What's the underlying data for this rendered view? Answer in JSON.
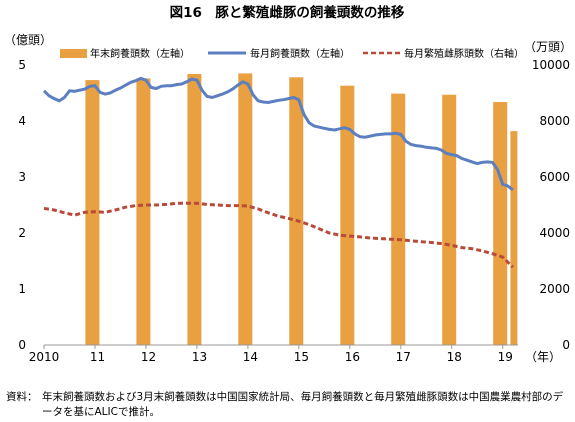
{
  "title": "図16　豚と繁殖雌豚の飼養頭数の推移",
  "note": {
    "label": "資料：",
    "text": "年末飼養頭数および3月末飼養頭数は中国国家統計局、毎月飼養頭数と毎月繁殖雌豚頭数は中国農業農村部のデータを基にALICで推計。"
  },
  "colors": {
    "bar": "#E8A040",
    "monthly": "#5B7FC0",
    "sows": "#B84A3A"
  },
  "chart_data": {
    "type": "bar",
    "left_axis": {
      "title": "（億頭）",
      "min": 0,
      "max": 5,
      "ticks": [
        "0",
        "1",
        "2",
        "3",
        "4",
        "5"
      ]
    },
    "right_axis": {
      "title": "（万頭）",
      "min": 0,
      "max": 10000,
      "ticks": [
        "0",
        "2000",
        "4000",
        "6000",
        "8000",
        "10000"
      ]
    },
    "x_axis": {
      "unit": "（年）",
      "ticks": [
        "2010",
        "11",
        "12",
        "13",
        "14",
        "15",
        "16",
        "17",
        "18",
        "19"
      ],
      "range": [
        2010.0,
        2019.3
      ]
    },
    "legend": {
      "bar": "年末飼養頭数（左軸）",
      "monthly": "毎月飼養頭数（左軸）",
      "sows": "毎月繁殖雌豚頭数（右軸）"
    },
    "bars": {
      "name": "年末飼養頭数（左軸）",
      "x": [
        2010.95,
        2011.95,
        2012.95,
        2013.95,
        2014.95,
        2015.95,
        2016.95,
        2017.95,
        2018.95,
        2019.22
      ],
      "values": [
        4.73,
        4.76,
        4.84,
        4.85,
        4.78,
        4.63,
        4.49,
        4.47,
        4.34,
        3.82
      ]
    },
    "monthly": {
      "name": "毎月飼養頭数（左軸）",
      "x": [
        2010.0,
        2010.1,
        2010.2,
        2010.3,
        2010.4,
        2010.5,
        2010.6,
        2010.7,
        2010.8,
        2010.9,
        2011.0,
        2011.1,
        2011.2,
        2011.3,
        2011.4,
        2011.5,
        2011.6,
        2011.7,
        2011.8,
        2011.9,
        2012.0,
        2012.1,
        2012.2,
        2012.3,
        2012.4,
        2012.5,
        2012.6,
        2012.7,
        2012.8,
        2012.9,
        2013.0,
        2013.1,
        2013.2,
        2013.3,
        2013.4,
        2013.5,
        2013.6,
        2013.7,
        2013.8,
        2013.9,
        2014.0,
        2014.1,
        2014.2,
        2014.3,
        2014.4,
        2014.5,
        2014.6,
        2014.7,
        2014.8,
        2014.9,
        2015.0,
        2015.1,
        2015.2,
        2015.3,
        2015.4,
        2015.5,
        2015.6,
        2015.7,
        2015.8,
        2015.9,
        2016.0,
        2016.1,
        2016.2,
        2016.3,
        2016.4,
        2016.5,
        2016.6,
        2016.7,
        2016.8,
        2016.9,
        2017.0,
        2017.1,
        2017.2,
        2017.3,
        2017.4,
        2017.5,
        2017.6,
        2017.7,
        2017.8,
        2017.9,
        2018.0,
        2018.1,
        2018.2,
        2018.3,
        2018.4,
        2018.5,
        2018.6,
        2018.7,
        2018.8,
        2018.9,
        2019.0,
        2019.1,
        2019.2
      ],
      "values": [
        4.54,
        4.45,
        4.4,
        4.36,
        4.42,
        4.54,
        4.53,
        4.55,
        4.57,
        4.62,
        4.63,
        4.51,
        4.48,
        4.5,
        4.55,
        4.59,
        4.64,
        4.69,
        4.72,
        4.76,
        4.73,
        4.6,
        4.58,
        4.62,
        4.63,
        4.63,
        4.65,
        4.66,
        4.7,
        4.75,
        4.73,
        4.55,
        4.44,
        4.42,
        4.45,
        4.48,
        4.52,
        4.57,
        4.64,
        4.7,
        4.66,
        4.47,
        4.36,
        4.34,
        4.33,
        4.35,
        4.37,
        4.38,
        4.4,
        4.42,
        4.38,
        4.12,
        3.97,
        3.91,
        3.89,
        3.87,
        3.85,
        3.84,
        3.86,
        3.88,
        3.85,
        3.77,
        3.72,
        3.71,
        3.73,
        3.75,
        3.76,
        3.77,
        3.77,
        3.78,
        3.76,
        3.64,
        3.58,
        3.56,
        3.55,
        3.53,
        3.52,
        3.51,
        3.48,
        3.42,
        3.4,
        3.38,
        3.33,
        3.3,
        3.27,
        3.24,
        3.26,
        3.27,
        3.26,
        3.13,
        2.87,
        2.84,
        2.77
      ]
    },
    "sows": {
      "name": "毎月繁殖雌豚頭数（右軸）",
      "x": [
        2010.0,
        2010.2,
        2010.4,
        2010.6,
        2010.8,
        2011.0,
        2011.2,
        2011.4,
        2011.6,
        2011.8,
        2012.0,
        2012.2,
        2012.4,
        2012.6,
        2012.8,
        2013.0,
        2013.2,
        2013.4,
        2013.6,
        2013.8,
        2014.0,
        2014.2,
        2014.4,
        2014.6,
        2014.8,
        2015.0,
        2015.2,
        2015.4,
        2015.6,
        2015.8,
        2016.0,
        2016.2,
        2016.4,
        2016.6,
        2016.8,
        2017.0,
        2017.2,
        2017.4,
        2017.6,
        2017.8,
        2018.0,
        2018.2,
        2018.4,
        2018.6,
        2018.8,
        2019.0,
        2019.2
      ],
      "values": [
        4880,
        4820,
        4720,
        4640,
        4740,
        4760,
        4740,
        4820,
        4920,
        4980,
        5000,
        5000,
        5020,
        5060,
        5060,
        5060,
        5020,
        5000,
        4980,
        4980,
        4960,
        4860,
        4720,
        4600,
        4520,
        4420,
        4300,
        4150,
        4000,
        3920,
        3890,
        3860,
        3820,
        3800,
        3780,
        3760,
        3720,
        3690,
        3660,
        3620,
        3560,
        3480,
        3440,
        3360,
        3260,
        3140,
        2780
      ]
    }
  }
}
